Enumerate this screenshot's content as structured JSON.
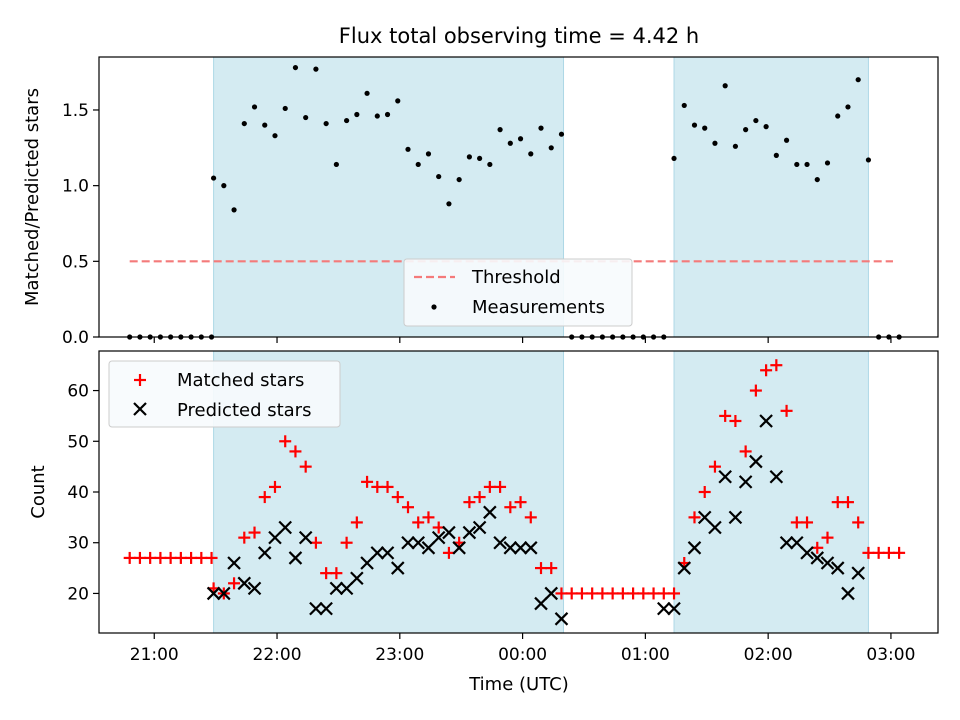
{
  "chart_data": [
    {
      "type": "scatter",
      "title": "Flux total observing time = 4.42 h",
      "xlabel": "",
      "ylabel": "Matched/Predicted stars",
      "xlim": [
        "20:33",
        "03:23"
      ],
      "ylim": [
        0,
        1.85
      ],
      "yticks": [
        "0.0",
        "0.5",
        "1.0",
        "1.5"
      ],
      "highlight_intervals": [
        [
          "21:29",
          "00:20"
        ],
        [
          "01:14",
          "02:49"
        ]
      ],
      "legend_position": "lower-center",
      "series": [
        {
          "name": "Threshold",
          "style": "dashed-line",
          "color": "#f47a7a",
          "x": [
            "20:48",
            "03:01"
          ],
          "y": [
            0.5,
            0.5
          ]
        },
        {
          "name": "Measurements",
          "style": "dot",
          "color": "#000000",
          "x": [
            "20:48",
            "20:53",
            "20:58",
            "21:03",
            "21:08",
            "21:13",
            "21:18",
            "21:23",
            "21:28",
            "21:29",
            "21:34",
            "21:39",
            "21:44",
            "21:49",
            "21:54",
            "21:59",
            "22:04",
            "22:09",
            "22:14",
            "22:19",
            "22:24",
            "22:29",
            "22:34",
            "22:39",
            "22:44",
            "22:49",
            "22:54",
            "22:59",
            "23:04",
            "23:09",
            "23:14",
            "23:19",
            "23:24",
            "23:29",
            "23:34",
            "23:39",
            "23:44",
            "23:49",
            "23:54",
            "23:59",
            "00:04",
            "00:09",
            "00:14",
            "00:19",
            "00:24",
            "00:29",
            "00:34",
            "00:39",
            "00:44",
            "00:49",
            "00:54",
            "00:59",
            "01:04",
            "01:09",
            "01:14",
            "01:19",
            "01:24",
            "01:29",
            "01:34",
            "01:39",
            "01:44",
            "01:49",
            "01:54",
            "01:59",
            "02:04",
            "02:09",
            "02:14",
            "02:19",
            "02:24",
            "02:29",
            "02:34",
            "02:39",
            "02:44",
            "02:49",
            "02:54",
            "02:59",
            "03:04"
          ],
          "y": [
            0,
            0,
            0,
            0,
            0,
            0,
            0,
            0,
            0,
            1.05,
            1.0,
            0.84,
            1.41,
            1.52,
            1.4,
            1.33,
            1.51,
            1.78,
            1.45,
            1.77,
            1.41,
            1.14,
            1.43,
            1.47,
            1.61,
            1.46,
            1.47,
            1.56,
            1.24,
            1.14,
            1.21,
            1.06,
            0.88,
            1.04,
            1.19,
            1.18,
            1.14,
            1.37,
            1.28,
            1.31,
            1.21,
            1.38,
            1.25,
            1.34,
            0,
            0,
            0,
            0,
            0,
            0,
            0,
            0,
            0,
            0,
            1.18,
            1.53,
            1.4,
            1.38,
            1.28,
            1.66,
            1.26,
            1.37,
            1.43,
            1.39,
            1.2,
            1.3,
            1.14,
            1.14,
            1.04,
            1.15,
            1.46,
            1.52,
            1.7,
            1.17,
            0,
            0,
            0
          ]
        }
      ]
    },
    {
      "type": "scatter",
      "title": "",
      "xlabel": "Time (UTC)",
      "ylabel": "Count",
      "xlim": [
        "20:33",
        "03:23"
      ],
      "ylim": [
        12.2,
        67.8
      ],
      "yticks": [
        20,
        30,
        40,
        50,
        60
      ],
      "xticks": [
        "21:00",
        "22:00",
        "23:00",
        "00:00",
        "01:00",
        "02:00",
        "03:00"
      ],
      "highlight_intervals": [
        [
          "21:29",
          "00:20"
        ],
        [
          "01:14",
          "02:49"
        ]
      ],
      "legend_position": "upper-left",
      "series": [
        {
          "name": "Matched stars",
          "marker": "plus",
          "color": "#ff0000",
          "x": [
            "20:48",
            "20:53",
            "20:58",
            "21:03",
            "21:08",
            "21:13",
            "21:18",
            "21:23",
            "21:28",
            "21:29",
            "21:34",
            "21:39",
            "21:44",
            "21:49",
            "21:54",
            "21:59",
            "22:04",
            "22:09",
            "22:14",
            "22:19",
            "22:24",
            "22:29",
            "22:34",
            "22:39",
            "22:44",
            "22:49",
            "22:54",
            "22:59",
            "23:04",
            "23:09",
            "23:14",
            "23:19",
            "23:24",
            "23:29",
            "23:34",
            "23:39",
            "23:44",
            "23:49",
            "23:54",
            "23:59",
            "00:04",
            "00:09",
            "00:14",
            "00:19",
            "00:24",
            "00:29",
            "00:34",
            "00:39",
            "00:44",
            "00:49",
            "00:54",
            "00:59",
            "01:04",
            "01:09",
            "01:14",
            "01:19",
            "01:24",
            "01:29",
            "01:34",
            "01:39",
            "01:44",
            "01:49",
            "01:54",
            "01:59",
            "02:04",
            "02:09",
            "02:14",
            "02:19",
            "02:24",
            "02:29",
            "02:34",
            "02:39",
            "02:44",
            "02:49",
            "02:54",
            "02:59",
            "03:04"
          ],
          "y": [
            27,
            27,
            27,
            27,
            27,
            27,
            27,
            27,
            27,
            21,
            20,
            22,
            31,
            32,
            39,
            41,
            50,
            48,
            45,
            30,
            24,
            24,
            30,
            34,
            42,
            41,
            41,
            39,
            37,
            34,
            35,
            33,
            28,
            30,
            38,
            39,
            41,
            41,
            37,
            38,
            35,
            25,
            25,
            20,
            20,
            20,
            20,
            20,
            20,
            20,
            20,
            20,
            20,
            20,
            20,
            26,
            35,
            40,
            45,
            55,
            54,
            48,
            60,
            64,
            65,
            56,
            34,
            34,
            29,
            31,
            38,
            38,
            34,
            28,
            28,
            28,
            28
          ]
        },
        {
          "name": "Predicted stars",
          "marker": "x",
          "color": "#000000",
          "x": [
            "21:29",
            "21:34",
            "21:39",
            "21:44",
            "21:49",
            "21:54",
            "21:59",
            "22:04",
            "22:09",
            "22:14",
            "22:19",
            "22:24",
            "22:29",
            "22:34",
            "22:39",
            "22:44",
            "22:49",
            "22:54",
            "22:59",
            "23:04",
            "23:09",
            "23:14",
            "23:19",
            "23:24",
            "23:29",
            "23:34",
            "23:39",
            "23:44",
            "23:49",
            "23:54",
            "23:59",
            "00:04",
            "00:09",
            "00:14",
            "00:19",
            "01:09",
            "01:14",
            "01:19",
            "01:24",
            "01:29",
            "01:34",
            "01:39",
            "01:44",
            "01:49",
            "01:54",
            "01:59",
            "02:04",
            "02:09",
            "02:14",
            "02:19",
            "02:24",
            "02:29",
            "02:34",
            "02:39",
            "02:44",
            "02:49"
          ],
          "y": [
            20,
            20,
            26,
            22,
            21,
            28,
            31,
            33,
            27,
            31,
            17,
            17,
            21,
            21,
            23,
            26,
            28,
            28,
            25,
            30,
            30,
            29,
            31,
            32,
            29,
            32,
            33,
            36,
            30,
            29,
            29,
            29,
            18,
            20,
            15,
            17,
            17,
            25,
            29,
            35,
            33,
            43,
            35,
            42,
            46,
            54,
            43,
            30,
            30,
            28,
            27,
            26,
            25,
            20,
            24,
            null
          ]
        }
      ]
    }
  ]
}
